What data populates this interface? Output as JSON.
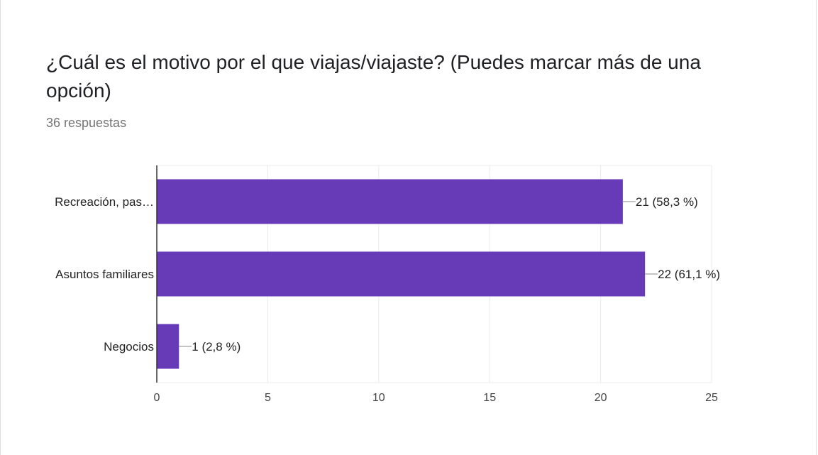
{
  "question": {
    "title": "¿Cuál es el motivo por el que viajas/viajaste? (Puedes marcar más de una opción)",
    "response_count": "36 respuestas"
  },
  "colors": {
    "bar": "#673ab7",
    "grid": "#ebebeb",
    "axis": "#333333"
  },
  "chart_data": {
    "type": "bar",
    "orientation": "horizontal",
    "categories": [
      "Recreación, pas…",
      "Asuntos familiares",
      "Negocios"
    ],
    "values": [
      21,
      22,
      1
    ],
    "data_labels": [
      "21 (58,3 %)",
      "22 (61,1 %)",
      "1 (2,8 %)"
    ],
    "xlim": [
      0,
      25
    ],
    "xticks": [
      "0",
      "5",
      "10",
      "15",
      "20",
      "25"
    ],
    "grid": true,
    "legend": "none"
  }
}
